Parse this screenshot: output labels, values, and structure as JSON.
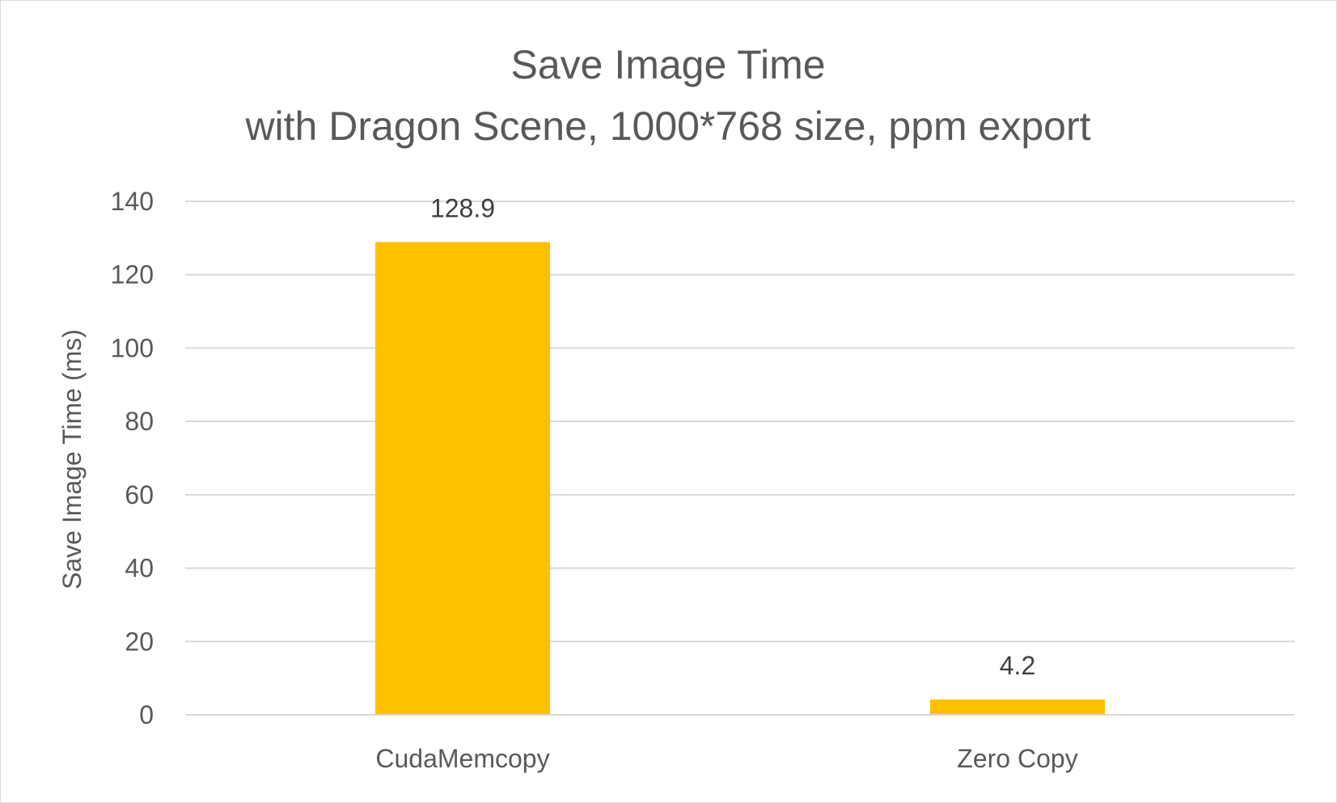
{
  "chart_data": {
    "type": "bar",
    "title_lines": [
      "Save Image Time",
      "with Dragon Scene, 1000*768 size, ppm export"
    ],
    "xlabel": "",
    "ylabel": "Save Image Time (ms)",
    "categories": [
      "CudaMemcopy",
      "Zero Copy"
    ],
    "values": [
      128.9,
      4.2
    ],
    "value_labels": [
      "128.9",
      "4.2"
    ],
    "ylim": [
      0,
      140
    ],
    "yticks": [
      0,
      20,
      40,
      60,
      80,
      100,
      120,
      140
    ],
    "grid": true,
    "legend": "none",
    "bar_color": "#FFC000",
    "grid_color": "#d9d9d9"
  }
}
